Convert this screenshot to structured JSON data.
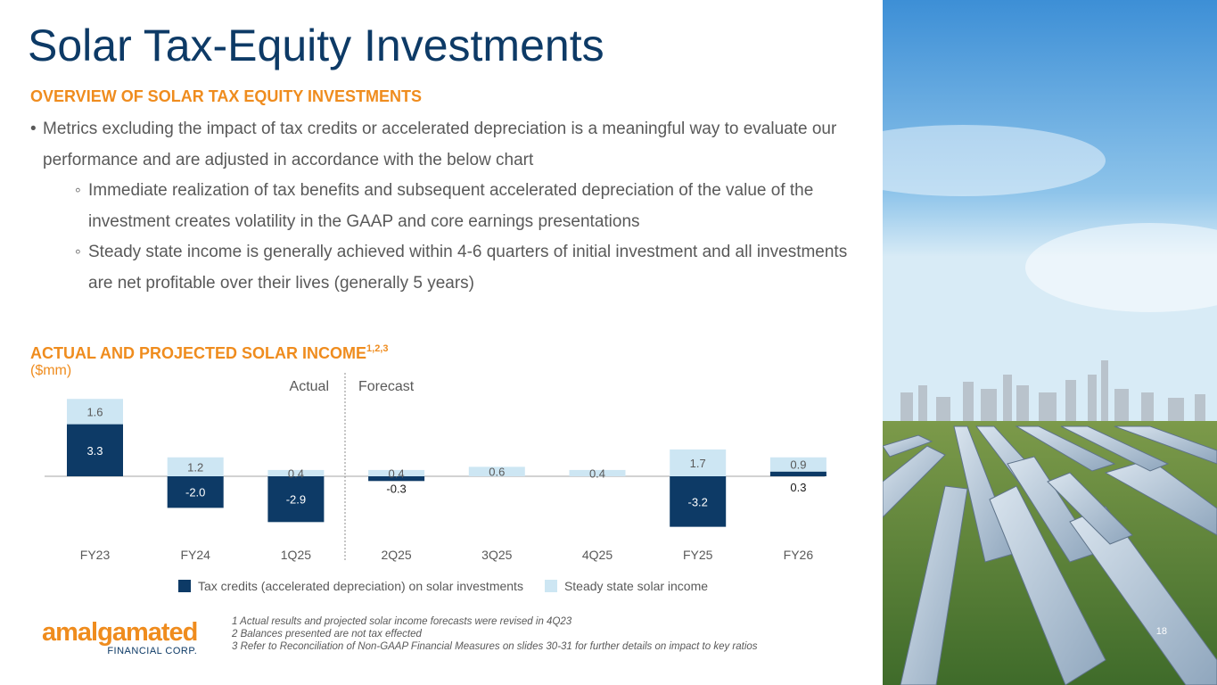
{
  "slide": {
    "title": "Solar Tax-Equity Investments",
    "overview_heading": "OVERVIEW OF SOLAR TAX EQUITY INVESTMENTS",
    "bullets": [
      {
        "level": 1,
        "text": "Metrics excluding the impact of tax credits or accelerated depreciation is a meaningful way to evaluate our performance and are adjusted in accordance with the below chart"
      },
      {
        "level": 2,
        "text": "Immediate realization of tax benefits and subsequent accelerated depreciation of the value of the investment creates volatility in the GAAP and core earnings presentations"
      },
      {
        "level": 2,
        "text": "Steady state income is generally achieved within 4-6 quarters of initial investment and all investments are net profitable over their lives (generally 5 years)"
      }
    ],
    "chart_heading": "ACTUAL AND PROJECTED SOLAR INCOME",
    "chart_heading_sup": "1,2,3",
    "chart_units": "($mm)",
    "footnotes": [
      "1 Actual results and projected solar income forecasts were revised in 4Q23",
      "2 Balances presented are not tax effected",
      "3 Refer to Reconciliation of Non-GAAP Financial Measures on slides 30-31 for further details on impact to key ratios"
    ],
    "logo": {
      "main": "amalgamated",
      "sub": "FINANCIAL CORP."
    },
    "page_number": "18"
  },
  "chart_data": {
    "type": "bar",
    "stacked": true,
    "categories": [
      "FY23",
      "FY24",
      "1Q25",
      "2Q25",
      "3Q25",
      "4Q25",
      "FY25",
      "FY26"
    ],
    "series": [
      {
        "name": "Tax credits (accelerated depreciation) on solar investments",
        "color": "#0d3a66",
        "values": [
          3.3,
          -2.0,
          -2.9,
          -0.3,
          null,
          null,
          -3.2,
          0.3
        ]
      },
      {
        "name": "Steady state solar income",
        "color": "#cde6f3",
        "values": [
          1.6,
          1.2,
          0.4,
          0.4,
          0.6,
          0.4,
          1.7,
          0.9
        ]
      }
    ],
    "divider_labels": {
      "left": "Actual",
      "right": "Forecast"
    },
    "legend_position": "bottom",
    "grid": false
  }
}
